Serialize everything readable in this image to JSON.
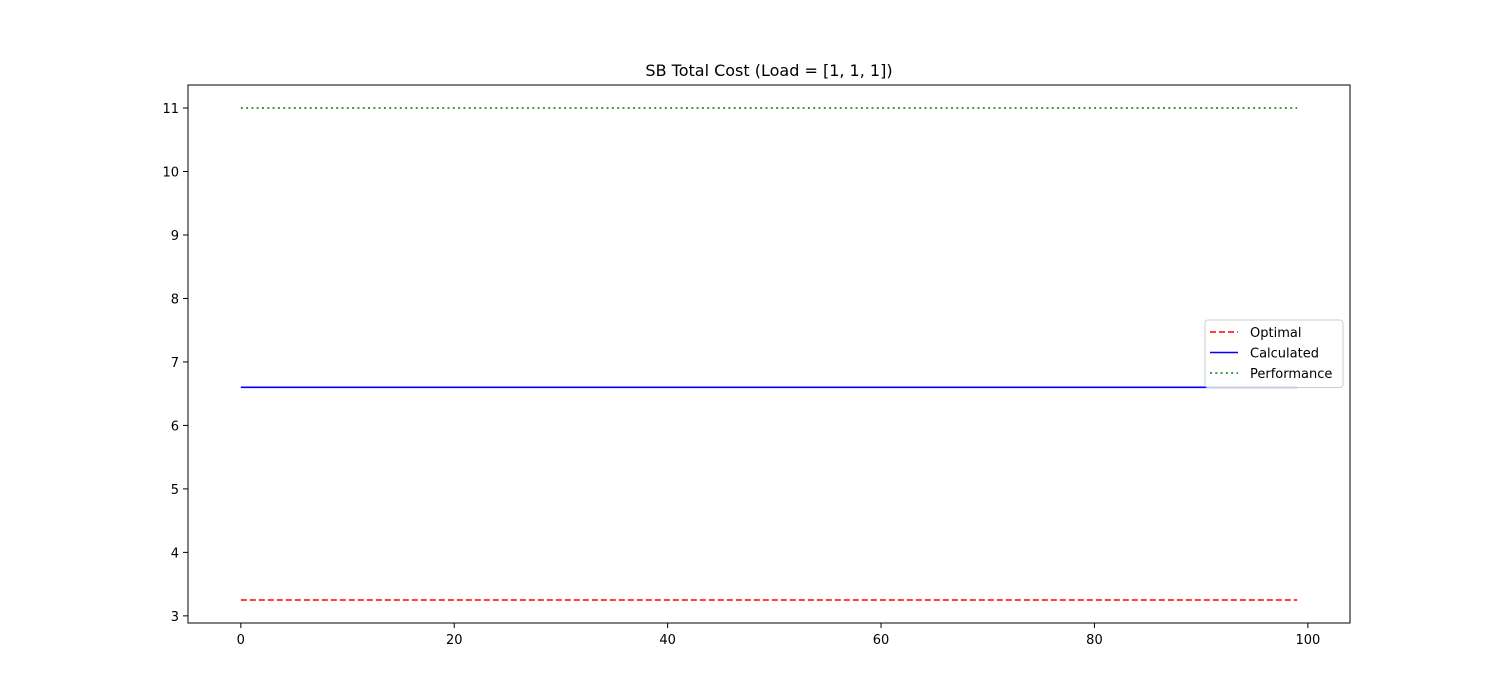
{
  "chart_data": {
    "type": "line",
    "title": "SB Total Cost (Load = [1, 1, 1])",
    "xlabel": "",
    "ylabel": "",
    "xlim": [
      -4.95,
      103.95
    ],
    "ylim": [
      2.8875,
      11.3625
    ],
    "x_ticks": [
      0,
      20,
      40,
      60,
      80,
      100
    ],
    "y_ticks": [
      3,
      4,
      5,
      6,
      7,
      8,
      9,
      10,
      11
    ],
    "x_range": [
      0,
      99
    ],
    "grid": false,
    "legend_position": "center-right",
    "series": [
      {
        "name": "Optimal",
        "value": 3.25,
        "color": "#ff0000",
        "style": "dashed"
      },
      {
        "name": "Calculated",
        "value": 6.6,
        "color": "#0000ff",
        "style": "solid"
      },
      {
        "name": "Performance",
        "value": 11.0,
        "color": "#008000",
        "style": "dotted"
      }
    ]
  }
}
